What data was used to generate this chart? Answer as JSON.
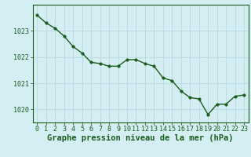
{
  "x": [
    0,
    1,
    2,
    3,
    4,
    5,
    6,
    7,
    8,
    9,
    10,
    11,
    12,
    13,
    14,
    15,
    16,
    17,
    18,
    19,
    20,
    21,
    22,
    23
  ],
  "y": [
    1023.6,
    1023.3,
    1023.1,
    1022.8,
    1022.4,
    1022.15,
    1021.8,
    1021.75,
    1021.65,
    1021.65,
    1021.9,
    1021.9,
    1021.75,
    1021.65,
    1021.2,
    1021.1,
    1020.7,
    1020.45,
    1020.4,
    1019.8,
    1020.2,
    1020.2,
    1020.5,
    1020.55
  ],
  "line_color": "#1a5c1a",
  "marker_color": "#1a5c1a",
  "bg_color": "#d4eef4",
  "grid_color": "#b8d8e0",
  "axis_color": "#1a5c1a",
  "label_color": "#1a5c1a",
  "xlabel": "Graphe pression niveau de la mer (hPa)",
  "ylim": [
    1019.5,
    1024.0
  ],
  "yticks": [
    1020,
    1021,
    1022,
    1023
  ],
  "xticks": [
    0,
    1,
    2,
    3,
    4,
    5,
    6,
    7,
    8,
    9,
    10,
    11,
    12,
    13,
    14,
    15,
    16,
    17,
    18,
    19,
    20,
    21,
    22,
    23
  ],
  "marker_size": 2.5,
  "line_width": 1.0,
  "xlabel_fontsize": 7.5,
  "tick_fontsize": 6.0
}
